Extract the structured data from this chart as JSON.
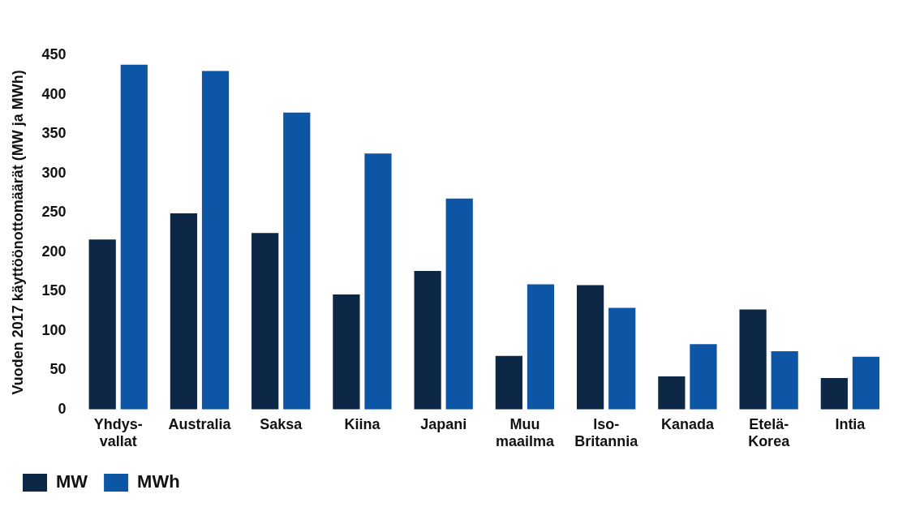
{
  "chart_data": {
    "type": "bar",
    "ylabel": "Vuoden 2017 käyttöönottomäärät (MW ja MWh)",
    "categories": [
      "Yhdys-\nvallat",
      "Australia",
      "Saksa",
      "Kiina",
      "Japani",
      "Muu\nmaailma",
      "Iso-\nBritannia",
      "Kanada",
      "Etelä-\nKorea",
      "Intia"
    ],
    "series": [
      {
        "name": "MW",
        "color": "#0d2847",
        "values": [
          216,
          249,
          224,
          146,
          176,
          68,
          158,
          42,
          127,
          40
        ]
      },
      {
        "name": "MWh",
        "color": "#0d56a6",
        "values": [
          438,
          430,
          377,
          325,
          268,
          159,
          129,
          83,
          74,
          67
        ]
      }
    ],
    "ylim": [
      0,
      450
    ],
    "yticks": [
      0,
      50,
      100,
      150,
      200,
      250,
      300,
      350,
      400,
      450
    ],
    "grid": false,
    "legend": "bottom"
  }
}
